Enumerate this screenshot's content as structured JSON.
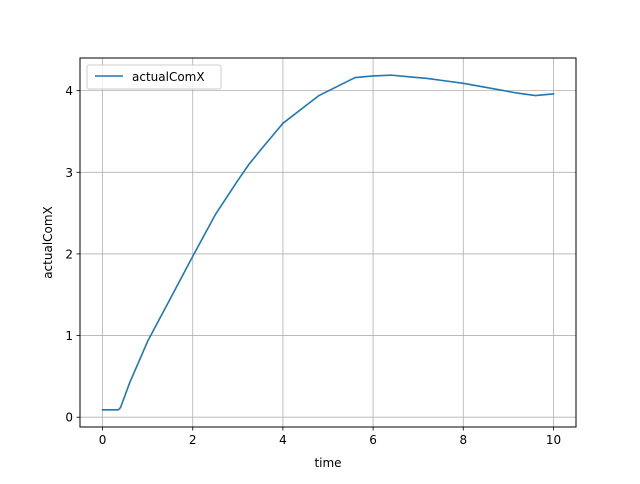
{
  "chart_data": {
    "type": "line",
    "title": "",
    "xlabel": "time",
    "ylabel": "actualComX",
    "xlim": [
      -0.5,
      10.5
    ],
    "ylim": [
      -0.12,
      4.4
    ],
    "xticks": [
      0,
      2,
      4,
      6,
      8,
      10
    ],
    "xtick_labels": [
      "0",
      "2",
      "4",
      "6",
      "8",
      "10"
    ],
    "yticks": [
      0,
      1,
      2,
      3,
      4
    ],
    "ytick_labels": [
      "0",
      "1",
      "2",
      "3",
      "4"
    ],
    "grid": true,
    "legend_position": "top-left",
    "series": [
      {
        "name": "actualComX",
        "color": "#1f77b4",
        "x": [
          0.0,
          0.2,
          0.35,
          0.4,
          0.6,
          1.0,
          1.5,
          2.0,
          2.5,
          3.0,
          3.25,
          3.5,
          4.0,
          4.8,
          5.6,
          6.0,
          6.4,
          6.8,
          7.2,
          7.6,
          8.0,
          8.4,
          8.8,
          9.2,
          9.6,
          10.0
        ],
        "y": [
          0.09,
          0.09,
          0.09,
          0.12,
          0.42,
          0.93,
          1.45,
          1.97,
          2.48,
          2.9,
          3.1,
          3.27,
          3.6,
          3.94,
          4.16,
          4.18,
          4.19,
          4.17,
          4.15,
          4.12,
          4.09,
          4.05,
          4.01,
          3.97,
          3.94,
          3.96
        ]
      }
    ]
  }
}
